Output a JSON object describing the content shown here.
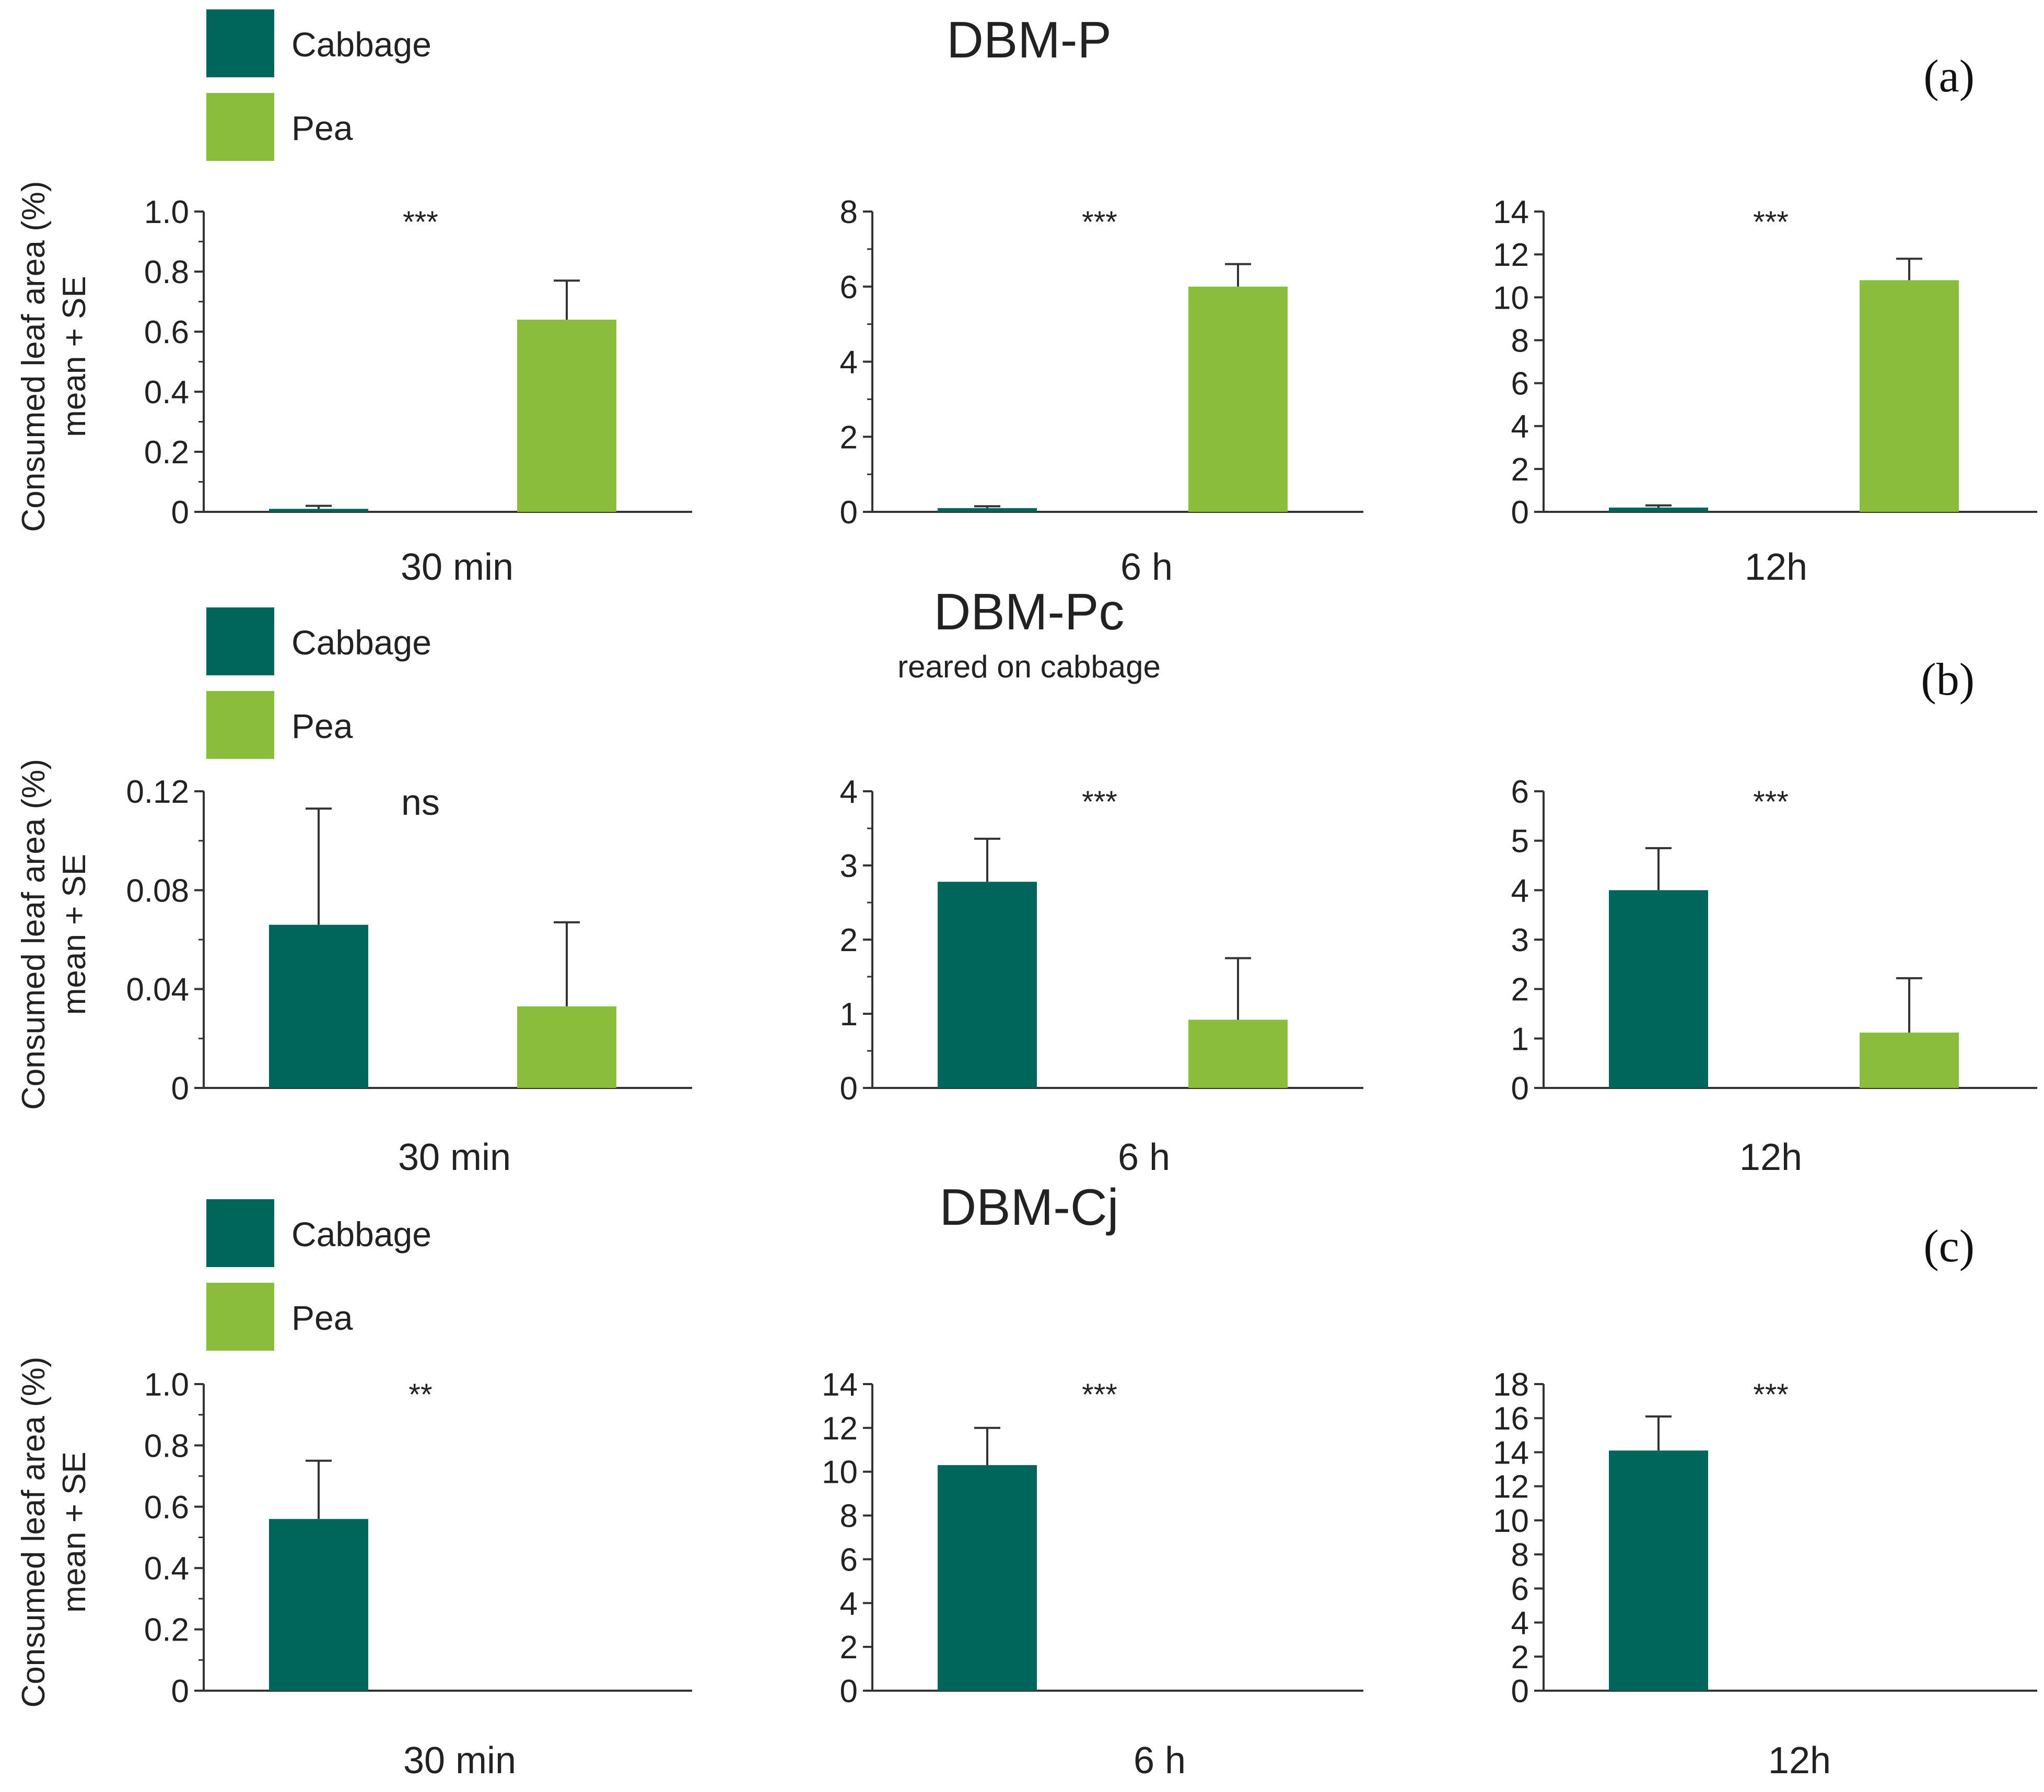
{
  "colors": {
    "cabbage": "#00665c",
    "pea": "#8abd3c",
    "axis": "#333333",
    "text": "#222222"
  },
  "legend_labels": [
    "Cabbage",
    "Pea"
  ],
  "ylabel_line1": "Consumed leaf area (%)",
  "ylabel_line2": "mean + SE",
  "chart_data": [
    {
      "id": "a",
      "type": "bar",
      "panel_title": "DBM-P",
      "panel_subtitle": "",
      "panel_letter": "(a)",
      "legend": [
        "Cabbage",
        "Pea"
      ],
      "charts": [
        {
          "xlabel": "30 min",
          "ylabel": "Consumed leaf area (%) mean + SE",
          "ylim": [
            0,
            1.0
          ],
          "ticks": [
            0,
            0.2,
            0.4,
            0.6,
            0.8,
            1.0
          ],
          "tick_labels": [
            "0",
            "0.2",
            "0.4",
            "0.6",
            "0.8",
            "1.0"
          ],
          "minor": 2,
          "significance": "***",
          "series": [
            {
              "name": "Cabbage",
              "value": 0.01,
              "se": 0.01
            },
            {
              "name": "Pea",
              "value": 0.64,
              "se": 0.13
            }
          ]
        },
        {
          "xlabel": "6 h",
          "ylabel": "",
          "ylim": [
            0,
            8
          ],
          "ticks": [
            0,
            2,
            4,
            6,
            8
          ],
          "tick_labels": [
            "0",
            "2",
            "4",
            "6",
            "8"
          ],
          "minor": 2,
          "significance": "***",
          "series": [
            {
              "name": "Cabbage",
              "value": 0.1,
              "se": 0.05
            },
            {
              "name": "Pea",
              "value": 6.0,
              "se": 0.6
            }
          ]
        },
        {
          "xlabel": "12h",
          "ylabel": "",
          "ylim": [
            0,
            14
          ],
          "ticks": [
            0,
            2,
            4,
            6,
            8,
            10,
            12,
            14
          ],
          "tick_labels": [
            "0",
            "2",
            "4",
            "6",
            "8",
            "10",
            "12",
            "14"
          ],
          "minor": 1,
          "significance": "***",
          "series": [
            {
              "name": "Cabbage",
              "value": 0.2,
              "se": 0.1
            },
            {
              "name": "Pea",
              "value": 10.8,
              "se": 1.0
            }
          ]
        }
      ]
    },
    {
      "id": "b",
      "type": "bar",
      "panel_title": "DBM-Pc",
      "panel_subtitle": "reared on cabbage",
      "panel_letter": "(b)",
      "legend": [
        "Cabbage",
        "Pea"
      ],
      "charts": [
        {
          "xlabel": "30 min",
          "ylabel": "Consumed leaf area (%) mean + SE",
          "ylim": [
            0,
            0.12
          ],
          "ticks": [
            0,
            0.04,
            0.08,
            0.12
          ],
          "tick_labels": [
            "0",
            "0.04",
            "0.08",
            "0.12"
          ],
          "minor": 2,
          "significance": "ns",
          "series": [
            {
              "name": "Cabbage",
              "value": 0.066,
              "se": 0.047
            },
            {
              "name": "Pea",
              "value": 0.033,
              "se": 0.034
            }
          ]
        },
        {
          "xlabel": "6 h",
          "ylabel": "",
          "ylim": [
            0,
            4
          ],
          "ticks": [
            0,
            1,
            2,
            3,
            4
          ],
          "tick_labels": [
            "0",
            "1",
            "2",
            "3",
            "4"
          ],
          "minor": 2,
          "significance": "***",
          "series": [
            {
              "name": "Cabbage",
              "value": 2.78,
              "se": 0.58
            },
            {
              "name": "Pea",
              "value": 0.92,
              "se": 0.83
            }
          ]
        },
        {
          "xlabel": "12h",
          "ylabel": "",
          "ylim": [
            0,
            6
          ],
          "ticks": [
            0,
            1,
            2,
            3,
            4,
            5,
            6
          ],
          "tick_labels": [
            "0",
            "1",
            "2",
            "3",
            "4",
            "5",
            "6"
          ],
          "minor": 1,
          "significance": "***",
          "series": [
            {
              "name": "Cabbage",
              "value": 4.0,
              "se": 0.85
            },
            {
              "name": "Pea",
              "value": 1.12,
              "se": 1.1
            }
          ]
        }
      ]
    },
    {
      "id": "c",
      "type": "bar",
      "panel_title": "DBM-Cj",
      "panel_subtitle": "",
      "panel_letter": "(c)",
      "legend": [
        "Cabbage",
        "Pea"
      ],
      "charts": [
        {
          "xlabel": "30 min",
          "ylabel": "Consumed leaf area (%) mean + SE",
          "ylim": [
            0,
            1.0
          ],
          "ticks": [
            0,
            0.2,
            0.4,
            0.6,
            0.8,
            1.0
          ],
          "tick_labels": [
            "0",
            "0.2",
            "0.4",
            "0.6",
            "0.8",
            "1.0"
          ],
          "minor": 2,
          "significance": "**",
          "series": [
            {
              "name": "Cabbage",
              "value": 0.56,
              "se": 0.19
            },
            {
              "name": "Pea",
              "value": 0,
              "se": 0
            }
          ]
        },
        {
          "xlabel": "6 h",
          "ylabel": "",
          "ylim": [
            0,
            14
          ],
          "ticks": [
            0,
            2,
            4,
            6,
            8,
            10,
            12,
            14
          ],
          "tick_labels": [
            "0",
            "2",
            "4",
            "6",
            "8",
            "10",
            "12",
            "14"
          ],
          "minor": 1,
          "significance": "***",
          "series": [
            {
              "name": "Cabbage",
              "value": 10.3,
              "se": 1.7
            },
            {
              "name": "Pea",
              "value": 0,
              "se": 0
            }
          ]
        },
        {
          "xlabel": "12h",
          "ylabel": "",
          "ylim": [
            0,
            18
          ],
          "ticks": [
            0,
            2,
            4,
            6,
            8,
            10,
            12,
            14,
            16,
            18
          ],
          "tick_labels": [
            "0",
            "2",
            "4",
            "6",
            "8",
            "10",
            "12",
            "14",
            "16",
            "18"
          ],
          "minor": 1,
          "significance": "***",
          "series": [
            {
              "name": "Cabbage",
              "value": 14.1,
              "se": 2.0
            },
            {
              "name": "Pea",
              "value": 0,
              "se": 0
            }
          ]
        }
      ]
    }
  ]
}
